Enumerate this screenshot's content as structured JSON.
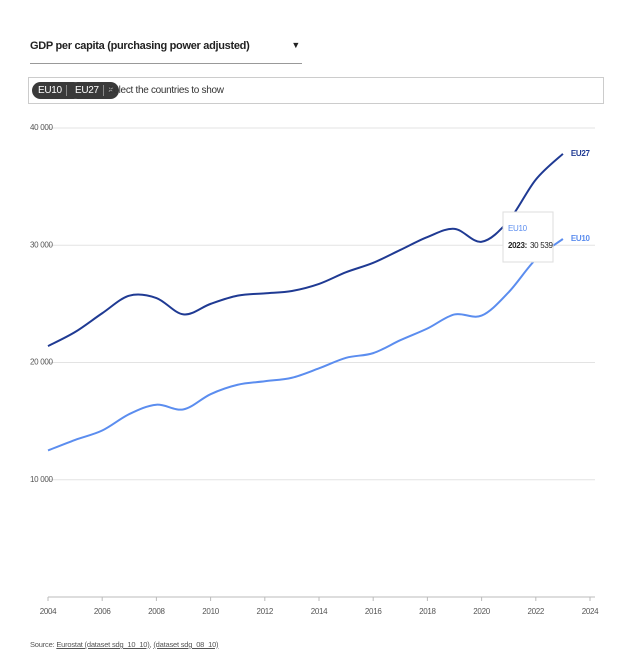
{
  "dropdown": {
    "label": "GDP per capita (purchasing power adjusted)",
    "arrow": "▼"
  },
  "filter": {
    "chips": [
      {
        "label": "EU10",
        "remove": "×"
      },
      {
        "label": "EU27",
        "remove": "×"
      }
    ],
    "placeholder": "Select the countries to show"
  },
  "chart_data": {
    "type": "line",
    "x": [
      2004,
      2005,
      2006,
      2007,
      2008,
      2009,
      2010,
      2011,
      2012,
      2013,
      2014,
      2015,
      2016,
      2017,
      2018,
      2019,
      2020,
      2021,
      2022,
      2023
    ],
    "series": [
      {
        "name": "EU27",
        "color": "#1f3a93",
        "values": [
          21400,
          22600,
          24200,
          25700,
          25500,
          24100,
          25000,
          25700,
          25900,
          26100,
          26700,
          27700,
          28500,
          29600,
          30700,
          31400,
          30300,
          32100,
          35600,
          37800
        ]
      },
      {
        "name": "EU10",
        "color": "#5b8def",
        "values": [
          12500,
          13400,
          14200,
          15600,
          16400,
          16000,
          17300,
          18100,
          18400,
          18700,
          19500,
          20400,
          20800,
          21900,
          22900,
          24100,
          24000,
          26000,
          28800,
          30539
        ]
      }
    ],
    "xlim": [
      2004,
      2024
    ],
    "xticks": [
      2004,
      2006,
      2008,
      2010,
      2012,
      2014,
      2016,
      2018,
      2020,
      2022,
      2024
    ],
    "ylim": [
      0,
      40000
    ],
    "yticks": [
      {
        "value": 10000,
        "label": "10 000"
      },
      {
        "value": 20000,
        "label": "20 000"
      },
      {
        "value": 30000,
        "label": "30 000"
      },
      {
        "value": 40000,
        "label": "40 000"
      }
    ],
    "grid": true,
    "tooltip": {
      "title": "EU10",
      "x_label": "2023:",
      "value_label": "30 539"
    }
  },
  "source": {
    "prefix": "Source:",
    "links": [
      "Eurostat (dataset sdg_10_10)",
      "(dataset sdg_08_10)"
    ],
    "separator": ","
  }
}
